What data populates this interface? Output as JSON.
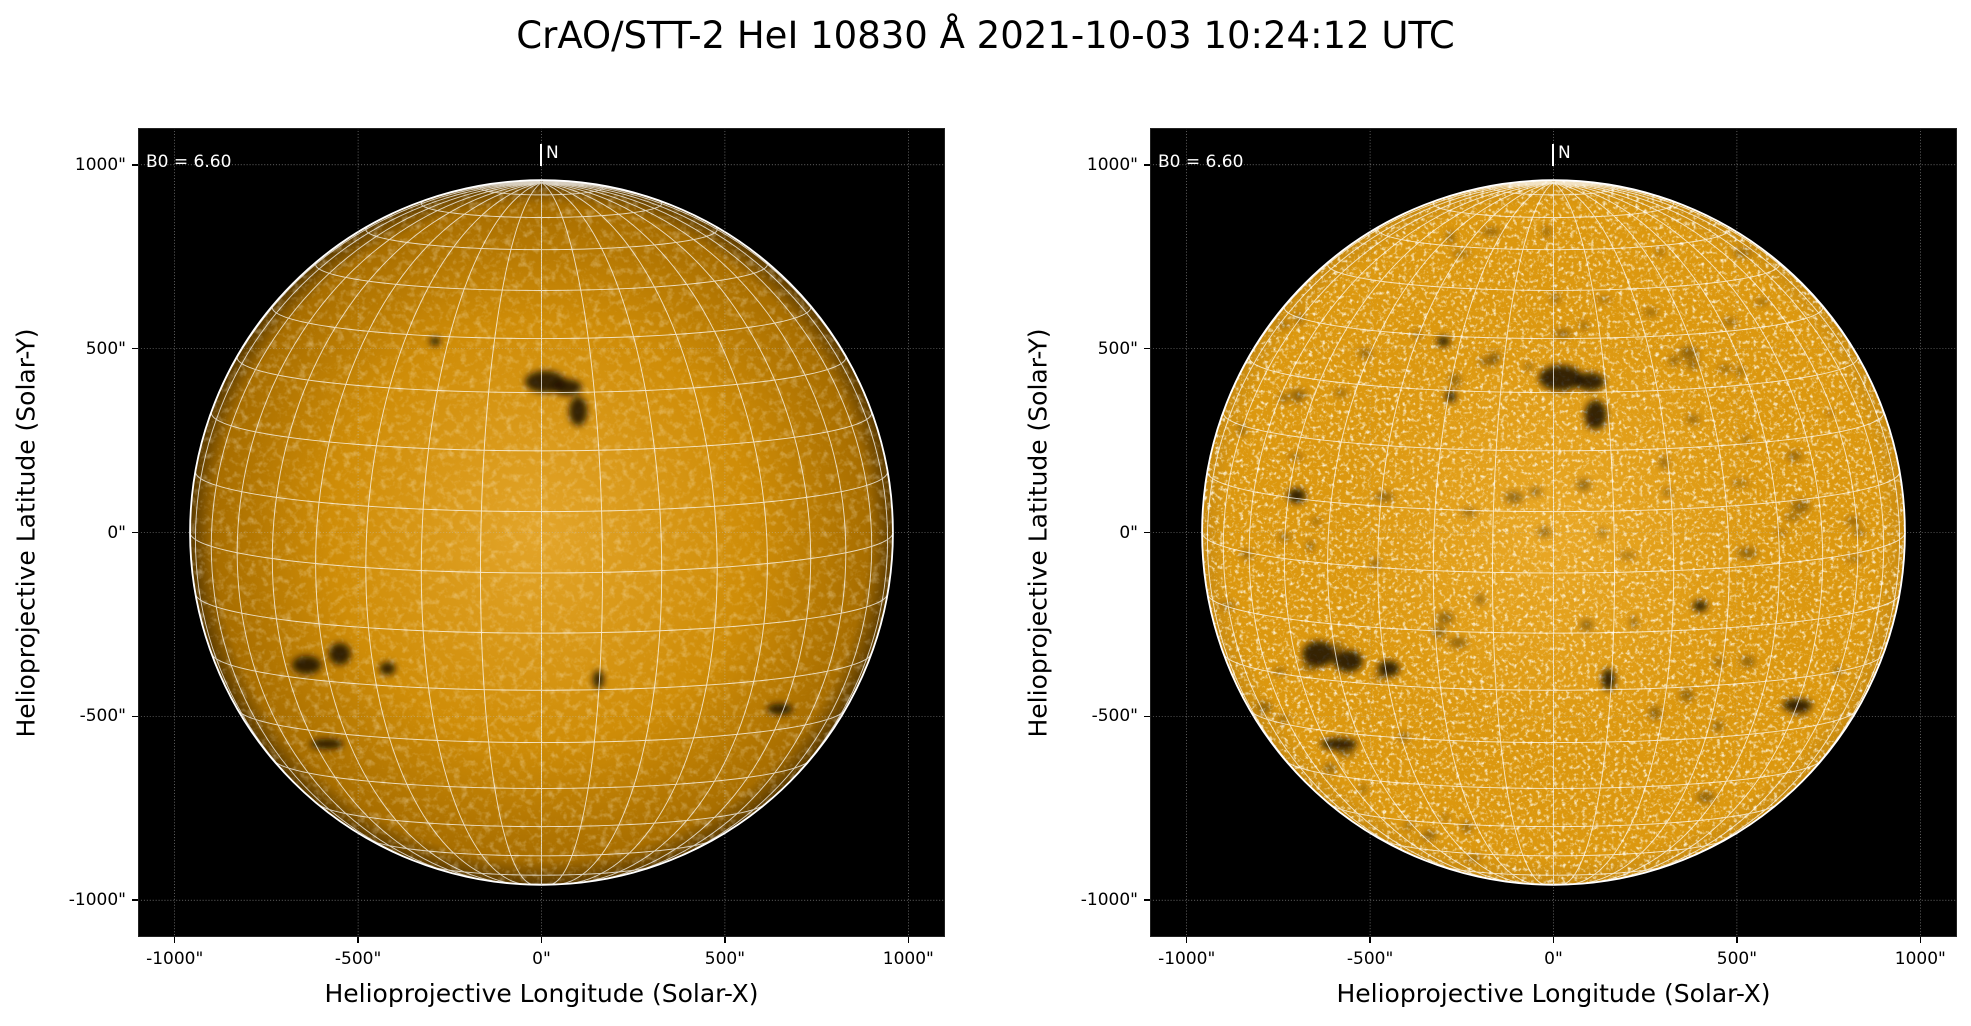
{
  "title": "CrAO/STT-2 HeI 10830 Å 2021-10-03 10:24:12 UTC",
  "chart_data": [
    {
      "type": "heatmap",
      "panel": "left",
      "title": "",
      "xlabel": "Helioprojective Longitude (Solar-X)",
      "ylabel": "Helioprojective Latitude (Solar-Y)",
      "xlim": [
        -1100,
        1100
      ],
      "ylim": [
        -1100,
        1100
      ],
      "xticks": [
        -1000,
        -500,
        0,
        500,
        1000
      ],
      "yticks": [
        1000,
        500,
        0,
        -500,
        -1000
      ],
      "xtick_labels": [
        "-1000\"",
        "-500\"",
        "0\"",
        "500\"",
        "1000\""
      ],
      "ytick_labels": [
        "1000\"",
        "500\"",
        "0\"",
        "-500\"",
        "-1000\""
      ],
      "grid": true,
      "annotation_b0": "B0 = 6.60",
      "annotation_north": "N",
      "b0_deg": 6.6,
      "solar_radius_arcsec": 958,
      "heliographic_grid_spacing_deg": 10,
      "colors": {
        "disk_center": "#e3a52a",
        "disk_mid": "#cf8d08",
        "disk_limb": "#5a3a00",
        "background": "#000000"
      },
      "dark_features": [
        {
          "x": 10,
          "y": 410,
          "rx": 55,
          "ry": 30
        },
        {
          "x": 70,
          "y": 395,
          "rx": 40,
          "ry": 22
        },
        {
          "x": 100,
          "y": 330,
          "rx": 25,
          "ry": 40
        },
        {
          "x": -640,
          "y": -360,
          "rx": 40,
          "ry": 25
        },
        {
          "x": -550,
          "y": -330,
          "rx": 30,
          "ry": 30
        },
        {
          "x": -420,
          "y": -370,
          "rx": 22,
          "ry": 18
        },
        {
          "x": -585,
          "y": -575,
          "rx": 45,
          "ry": 14
        },
        {
          "x": 650,
          "y": -480,
          "rx": 35,
          "ry": 15
        },
        {
          "x": 155,
          "y": -400,
          "rx": 15,
          "ry": 25
        },
        {
          "x": -290,
          "y": 520,
          "rx": 15,
          "ry": 12
        }
      ]
    },
    {
      "type": "heatmap",
      "panel": "right",
      "title": "",
      "xlabel": "Helioprojective Longitude (Solar-X)",
      "ylabel": "Helioprojective Latitude (Solar-Y)",
      "xlim": [
        -1100,
        1100
      ],
      "ylim": [
        -1100,
        1100
      ],
      "xticks": [
        -1000,
        -500,
        0,
        500,
        1000
      ],
      "yticks": [
        1000,
        500,
        0,
        -500,
        -1000
      ],
      "xtick_labels": [
        "-1000\"",
        "-500\"",
        "0\"",
        "500\"",
        "1000\""
      ],
      "ytick_labels": [
        "1000\"",
        "500\"",
        "0\"",
        "-500\"",
        "-1000\""
      ],
      "grid": true,
      "annotation_b0": "B0 = 6.60",
      "annotation_north": "N",
      "b0_deg": 6.6,
      "solar_radius_arcsec": 958,
      "heliographic_grid_spacing_deg": 10,
      "colors": {
        "disk_center": "#e9a826",
        "disk_mid": "#dc980f",
        "disk_limb": "#c88a10",
        "background": "#000000"
      },
      "dark_features": [
        {
          "x": 20,
          "y": 420,
          "rx": 60,
          "ry": 35
        },
        {
          "x": 100,
          "y": 410,
          "rx": 40,
          "ry": 25
        },
        {
          "x": 115,
          "y": 320,
          "rx": 30,
          "ry": 40
        },
        {
          "x": -640,
          "y": -330,
          "rx": 45,
          "ry": 35
        },
        {
          "x": -560,
          "y": -350,
          "rx": 40,
          "ry": 30
        },
        {
          "x": -450,
          "y": -370,
          "rx": 30,
          "ry": 22
        },
        {
          "x": -585,
          "y": -575,
          "rx": 50,
          "ry": 16
        },
        {
          "x": 665,
          "y": -470,
          "rx": 40,
          "ry": 18
        },
        {
          "x": 150,
          "y": -400,
          "rx": 18,
          "ry": 30
        },
        {
          "x": -300,
          "y": 520,
          "rx": 18,
          "ry": 14
        },
        {
          "x": -280,
          "y": 370,
          "rx": 15,
          "ry": 15
        },
        {
          "x": -700,
          "y": 100,
          "rx": 25,
          "ry": 20
        },
        {
          "x": 400,
          "y": -200,
          "rx": 20,
          "ry": 15
        }
      ]
    }
  ]
}
